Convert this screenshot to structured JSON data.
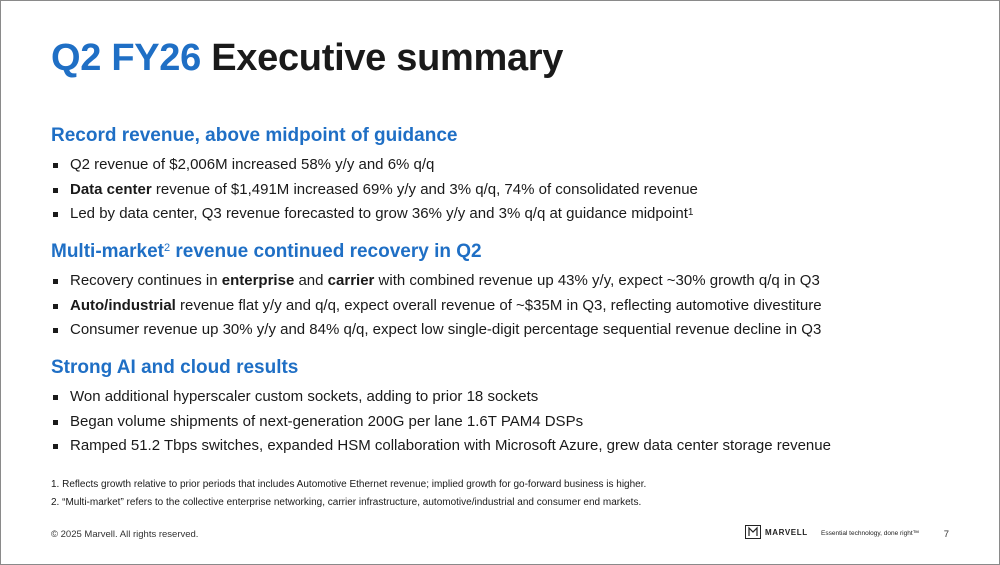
{
  "title": {
    "accent": "Q2 FY26",
    "rest": "Executive summary"
  },
  "sections": [
    {
      "heading": "Record revenue, above midpoint of guidance",
      "bullets": [
        {
          "pre": "Q2 revenue of $2,006M increased 58% y/y and 6% q/q"
        },
        {
          "bold": "Data center",
          "post": " revenue of $1,491M increased 69% y/y and 3% q/q, 74% of consolidated revenue"
        },
        {
          "pre": "Led by data center, Q3 revenue forecasted to grow 36% y/y and 3% q/q at guidance midpoint",
          "sup": "1"
        }
      ]
    },
    {
      "heading_pre": "Multi-market",
      "heading_sup": "2",
      "heading_post": " revenue continued recovery in Q2",
      "bullets": [
        {
          "pre": "Recovery continues in ",
          "bold1": "enterprise",
          "mid": " and ",
          "bold2": "carrier",
          "post": " with combined revenue up 43% y/y, expect ~30% growth q/q in Q3"
        },
        {
          "bold": "Auto/industrial",
          "post": " revenue flat y/y and q/q, expect overall revenue of ~$35M in Q3, reflecting automotive divestiture"
        },
        {
          "pre": "Consumer revenue up 30% y/y and 84% q/q, expect low single-digit percentage sequential revenue decline in Q3"
        }
      ]
    },
    {
      "heading": "Strong AI and cloud results",
      "bullets": [
        {
          "pre": "Won additional hyperscaler custom sockets, adding to prior 18 sockets"
        },
        {
          "pre": "Began volume shipments of next-generation 200G per lane 1.6T PAM4 DSPs"
        },
        {
          "pre": "Ramped 51.2 Tbps switches, expanded HSM collaboration with Microsoft Azure, grew data center storage revenue"
        }
      ]
    }
  ],
  "footnotes": [
    "1. Reflects growth relative to prior periods that includes Automotive Ethernet revenue; implied growth for go-forward business is higher.",
    "2. “Multi-market” refers to the collective enterprise networking, carrier infrastructure, automotive/industrial and consumer end markets."
  ],
  "footer": {
    "copyright": "© 2025 Marvell. All rights reserved.",
    "brand": "MARVELL",
    "tagline": "Essential technology, done right™",
    "page_number": "7"
  },
  "colors": {
    "accent": "#1f6fc5",
    "text": "#1a1a1a"
  },
  "icons": {
    "logo": "marvell-logo-icon"
  }
}
